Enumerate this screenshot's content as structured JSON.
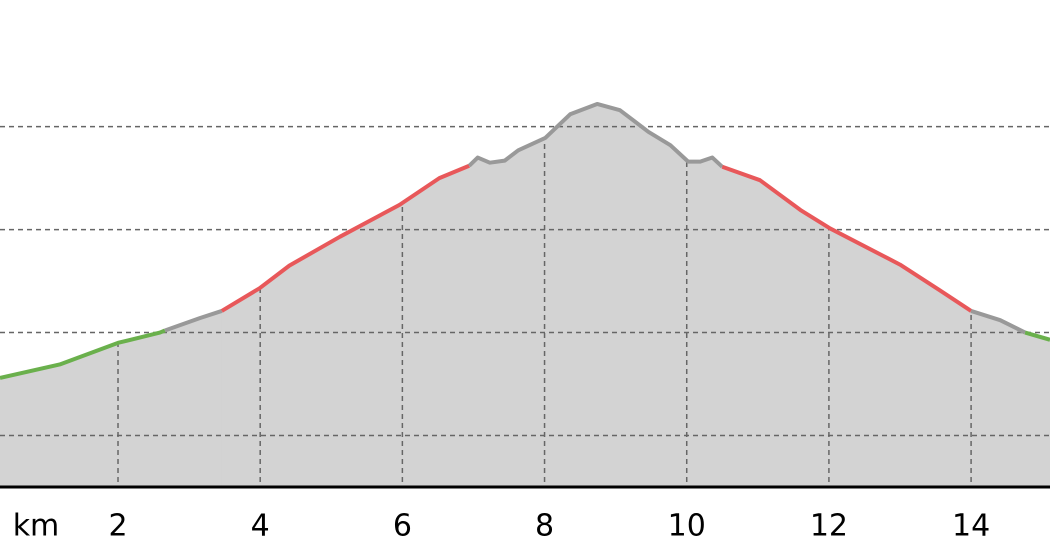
{
  "chart_data": {
    "type": "area",
    "xlabel": "km",
    "xlim": [
      0.34,
      15.11
    ],
    "xticks": [
      2,
      4,
      6,
      8,
      10,
      12,
      14
    ],
    "ylim": [
      0,
      4.73
    ],
    "yticks": [
      0.5,
      1.5,
      2.5,
      3.5
    ],
    "grid": true,
    "fill_color": "#d3d3d3",
    "series": [
      {
        "color": "#6ab04c",
        "x": [
          0.34,
          1.18,
          2,
          2.59,
          2.66
        ],
        "values": [
          1.06,
          1.19,
          1.4,
          1.5,
          1.52
        ]
      },
      {
        "color": "#999999",
        "x": [
          2.66,
          3.15,
          3.46
        ],
        "values": [
          1.52,
          1.64,
          1.71
        ]
      },
      {
        "color": "#e8585a",
        "x": [
          3.46,
          3.99,
          4.41,
          5.12,
          5.96,
          6.52,
          6.94
        ],
        "values": [
          1.71,
          1.93,
          2.15,
          2.43,
          2.74,
          3.0,
          3.12
        ]
      },
      {
        "color": "#999999",
        "x": [
          6.94,
          7.06,
          7.23,
          7.44,
          7.63,
          8.01,
          8.36,
          8.74,
          9.06,
          9.46,
          9.77,
          10.02,
          10.19,
          10.36,
          10.5
        ],
        "values": [
          3.12,
          3.2,
          3.15,
          3.17,
          3.27,
          3.39,
          3.62,
          3.72,
          3.66,
          3.45,
          3.32,
          3.16,
          3.16,
          3.2,
          3.11
        ]
      },
      {
        "color": "#e8585a",
        "x": [
          10.5,
          11.03,
          11.6,
          12.02,
          13.0,
          13.56,
          14.0
        ],
        "values": [
          3.11,
          2.98,
          2.69,
          2.51,
          2.16,
          1.91,
          1.71
        ]
      },
      {
        "color": "#999999",
        "x": [
          14.0,
          14.41,
          14.76
        ],
        "values": [
          1.71,
          1.62,
          1.5
        ]
      },
      {
        "color": "#6ab04c",
        "x": [
          14.76,
          15.11
        ],
        "values": [
          1.5,
          1.43
        ]
      }
    ]
  }
}
